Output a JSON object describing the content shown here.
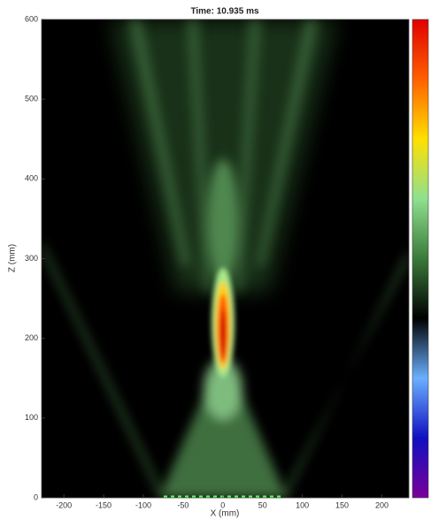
{
  "chart_data": {
    "type": "heatmap",
    "title": "Time: 10.935 ms",
    "x_label": "X (mm)",
    "y_label": "Z (mm)",
    "xlim": [
      -228,
      234
    ],
    "xticks": [
      -200,
      -150,
      -100,
      -50,
      0,
      50,
      100,
      150,
      200
    ],
    "ylim": [
      0,
      600
    ],
    "yticks": [
      0,
      100,
      200,
      300,
      400,
      500,
      600
    ],
    "colormap": [
      "#7a0099",
      "#1010c0",
      "#6ab0ff",
      "#000000",
      "#3a7a3a",
      "#8fe08f",
      "#ffe000",
      "#ff6000",
      "#e00000"
    ]
  }
}
